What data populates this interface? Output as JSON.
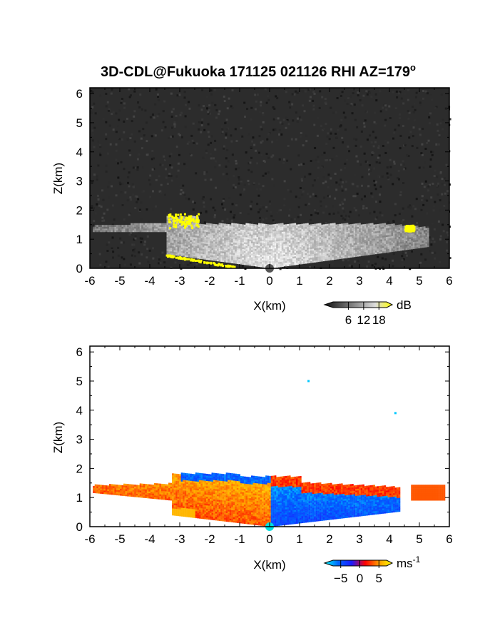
{
  "chart_data": [
    {
      "type": "heatmap",
      "title": "3D-CDL@Fukuoka 171125 021126 RHI AZ=179",
      "title_sup": "o",
      "xlabel": "X(km)",
      "ylabel": "Z(km)",
      "xlim": [
        -6,
        6
      ],
      "ylim": [
        0,
        6.2
      ],
      "xticks": [
        "-6",
        "-5",
        "-4",
        "-3",
        "-2",
        "-1",
        "0",
        "1",
        "2",
        "3",
        "4",
        "5",
        "6"
      ],
      "yticks": [
        "0",
        "1",
        "2",
        "3",
        "4",
        "5",
        "6"
      ],
      "colorbar": {
        "unit": "dB",
        "ticks": [
          "6",
          "12",
          "18"
        ],
        "tick_values": [
          6,
          12,
          18
        ],
        "range": [
          0,
          21
        ],
        "colors": [
          "#111111",
          "#555555",
          "#999999",
          "#dddddd",
          "#ffff00"
        ]
      },
      "background_noise": "#2c2c2c",
      "echo_extent_km": {
        "x_range": [
          -5.9,
          5.3
        ],
        "top_height": 1.5
      },
      "strong_echo_regions": [
        {
          "x_range": [
            -3.4,
            -2.4
          ],
          "z_range": [
            1.4,
            1.9
          ],
          "color": "#ffff00"
        },
        {
          "x_range": [
            4.5,
            4.8
          ],
          "z_range": [
            1.3,
            1.5
          ],
          "color": "#ffff00"
        },
        {
          "x_range": [
            -3.5,
            -1.2
          ],
          "z_range": [
            0.0,
            0.5
          ],
          "color": "#ffff00"
        }
      ]
    },
    {
      "type": "heatmap",
      "xlabel": "X(km)",
      "ylabel": "Z(km)",
      "xlim": [
        -6,
        6
      ],
      "ylim": [
        0,
        6.2
      ],
      "xticks": [
        "-6",
        "-5",
        "-4",
        "-3",
        "-2",
        "-1",
        "0",
        "1",
        "2",
        "3",
        "4",
        "5",
        "6"
      ],
      "yticks": [
        "0",
        "1",
        "2",
        "3",
        "4",
        "5",
        "6"
      ],
      "colorbar": {
        "unit": "ms",
        "unit_sup": "-1",
        "ticks": [
          "−5",
          "0",
          "5"
        ],
        "tick_values": [
          -5,
          0,
          5
        ],
        "range": [
          -7,
          7
        ],
        "colors": [
          "#00ffff",
          "#0066ff",
          "#1a1aff",
          "#ff0000",
          "#ff9900",
          "#ffff00"
        ]
      },
      "echo_extent_km": {
        "x_range": [
          -5.9,
          5.8
        ],
        "top_height": 1.8
      },
      "velocity_summary": [
        {
          "x_range": [
            -6,
            0
          ],
          "sign": "positive",
          "typical_ms": 4
        },
        {
          "x_range": [
            0,
            5.8
          ],
          "sign": "negative",
          "typical_ms": -4
        }
      ],
      "isolated_points": [
        {
          "x": 1.3,
          "z": 5.0,
          "value": -6
        },
        {
          "x": 4.2,
          "z": 3.9,
          "value": -6
        }
      ]
    }
  ]
}
